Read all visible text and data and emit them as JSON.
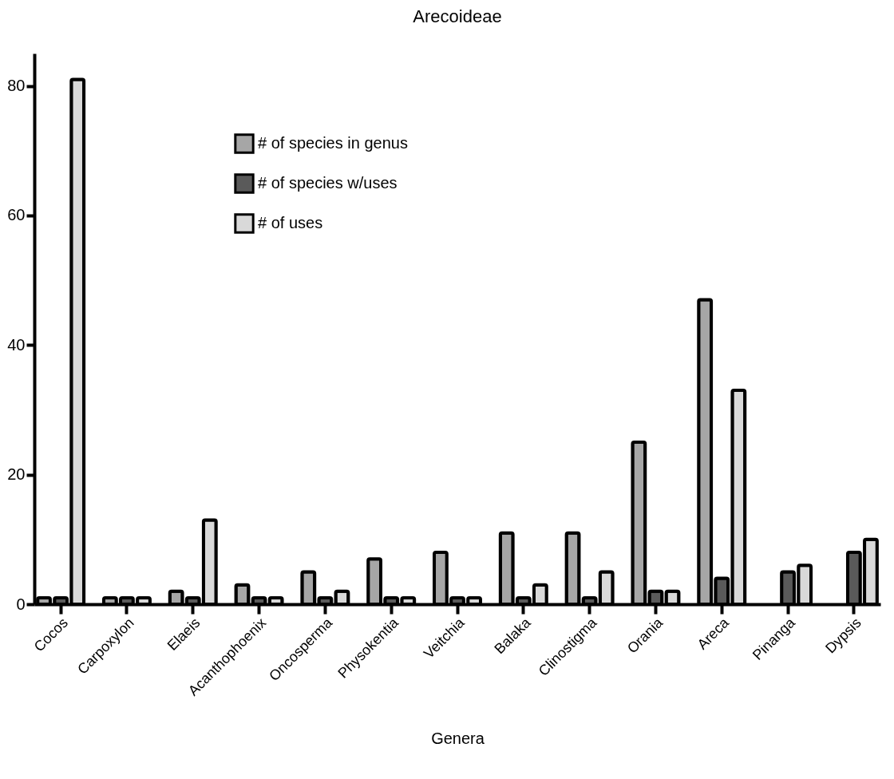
{
  "chart_data": {
    "type": "bar",
    "title": "Arecoideae",
    "xlabel": "Genera",
    "categories": [
      "Cocos",
      "Carpoxylon",
      "Elaeis",
      "Acanthophoenix",
      "Oncosperma",
      "Physokentia",
      "Veitchia",
      "Balaka",
      "Clinostigma",
      "Orania",
      "Areca",
      "Pinanga",
      "Dypsis"
    ],
    "series": [
      {
        "name": "# of species in genus",
        "color": "#a6a6a6",
        "values": [
          1,
          1,
          2,
          3,
          5,
          7,
          8,
          11,
          11,
          25,
          47,
          null,
          null
        ]
      },
      {
        "name": "# of species w/uses",
        "color": "#5a5a5a",
        "values": [
          1,
          1,
          1,
          1,
          1,
          1,
          1,
          1,
          1,
          2,
          4,
          5,
          8
        ]
      },
      {
        "name": "# of uses",
        "color": "#d9d9d9",
        "values": [
          81,
          1,
          13,
          1,
          2,
          1,
          1,
          3,
          5,
          2,
          33,
          6,
          10
        ]
      }
    ],
    "ylim": [
      0,
      85
    ],
    "yticks": [
      0,
      20,
      40,
      60,
      80
    ],
    "grid": false,
    "legend": "top left"
  }
}
